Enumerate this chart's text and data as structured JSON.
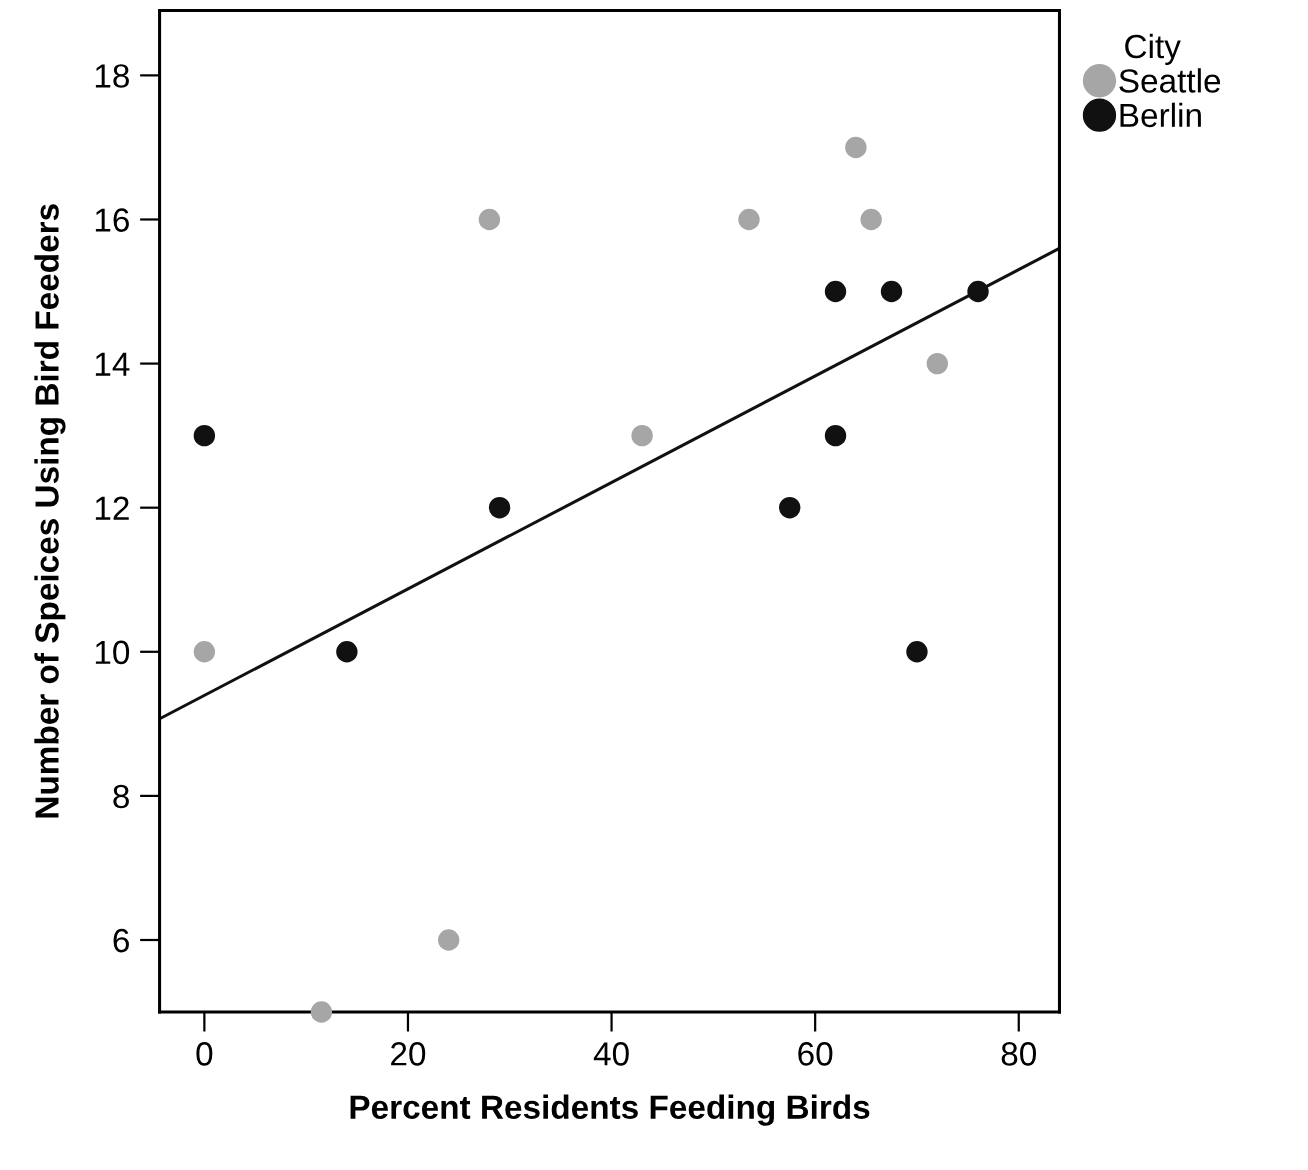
{
  "chart_data": {
    "type": "scatter",
    "xlabel": "Percent Residents Feeding Birds",
    "ylabel": "Number of Speices Using Bird Feeders",
    "legend_title": "City",
    "legend": "top right",
    "marker": "circle",
    "grid": false,
    "xlim": [
      -4.4,
      84
    ],
    "ylim": [
      5,
      18.9
    ],
    "xticks": [
      0,
      20,
      40,
      60,
      80
    ],
    "yticks": [
      6,
      8,
      10,
      12,
      14,
      16,
      18
    ],
    "series": [
      {
        "name": "Seattle",
        "color": "#a6a6a6",
        "x": [
          0,
          11.5,
          24,
          28,
          43,
          53.5,
          64,
          65.5,
          72
        ],
        "values": [
          10,
          5,
          6,
          16,
          13,
          16,
          17,
          16,
          14
        ]
      },
      {
        "name": "Berlin",
        "color": "#111111",
        "x": [
          0,
          14,
          29,
          57.5,
          62,
          62,
          67.5,
          70,
          76
        ],
        "values": [
          13,
          10,
          12,
          12,
          15,
          13,
          15,
          10,
          15
        ]
      },
      {
        "type": "line",
        "marker": "none",
        "color": "#111111",
        "x": [
          -4.4,
          84
        ],
        "values": [
          9.07,
          15.6
        ]
      }
    ]
  }
}
